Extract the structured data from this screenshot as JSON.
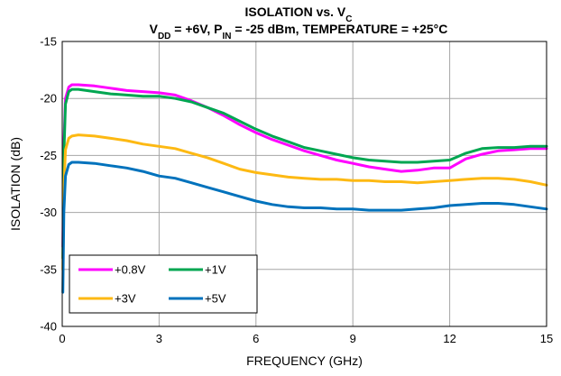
{
  "chart_data": {
    "type": "line",
    "title": "ISOLATION vs. V",
    "title_sub": "C",
    "subtitle_parts": [
      "V",
      "DD",
      " = +6V, P",
      "IN",
      " = -25 dBm, TEMPERATURE  = +25°C"
    ],
    "xlabel": "FREQUENCY (GHz)",
    "ylabel": "ISOLATION (dB)",
    "xlim": [
      0,
      15
    ],
    "ylim": [
      -40,
      -15
    ],
    "xticks": [
      0,
      3,
      6,
      9,
      12,
      15
    ],
    "yticks": [
      -40,
      -35,
      -30,
      -25,
      -20,
      -15
    ],
    "grid": true,
    "legend_position": "bottom-left",
    "series": [
      {
        "name": "+0.8V",
        "color": "#ff00ff",
        "x": [
          0.02,
          0.05,
          0.1,
          0.2,
          0.3,
          0.5,
          1,
          1.5,
          2,
          2.5,
          3,
          3.5,
          4,
          4.5,
          5,
          5.5,
          6,
          6.5,
          7,
          7.5,
          8,
          8.5,
          9,
          9.5,
          10,
          10.5,
          11,
          11.5,
          12,
          12.5,
          13,
          13.5,
          14,
          14.5,
          15
        ],
        "y": [
          -33,
          -24,
          -20,
          -19,
          -18.8,
          -18.8,
          -18.9,
          -19.1,
          -19.3,
          -19.4,
          -19.5,
          -19.7,
          -20.2,
          -20.8,
          -21.5,
          -22.3,
          -23.0,
          -23.6,
          -24.1,
          -24.6,
          -25.0,
          -25.4,
          -25.7,
          -26.0,
          -26.2,
          -26.4,
          -26.3,
          -26.1,
          -26.1,
          -25.3,
          -24.9,
          -24.6,
          -24.5,
          -24.4,
          -24.4
        ]
      },
      {
        "name": "+1V",
        "color": "#00a651",
        "x": [
          0.02,
          0.05,
          0.1,
          0.2,
          0.3,
          0.5,
          1,
          1.5,
          2,
          2.5,
          3,
          3.5,
          4,
          4.5,
          5,
          5.5,
          6,
          6.5,
          7,
          7.5,
          8,
          8.5,
          9,
          9.5,
          10,
          10.5,
          11,
          11.5,
          12,
          12.5,
          13,
          13.5,
          14,
          14.5,
          15
        ],
        "y": [
          -34,
          -25,
          -20.5,
          -19.4,
          -19.2,
          -19.2,
          -19.4,
          -19.6,
          -19.7,
          -19.8,
          -19.8,
          -20.0,
          -20.3,
          -20.8,
          -21.3,
          -22.0,
          -22.7,
          -23.3,
          -23.8,
          -24.3,
          -24.6,
          -24.9,
          -25.2,
          -25.4,
          -25.5,
          -25.6,
          -25.6,
          -25.5,
          -25.4,
          -24.8,
          -24.4,
          -24.3,
          -24.3,
          -24.2,
          -24.2
        ]
      },
      {
        "name": "+3V",
        "color": "#fdb913",
        "x": [
          0.02,
          0.05,
          0.1,
          0.2,
          0.3,
          0.5,
          1,
          1.5,
          2,
          2.5,
          3,
          3.5,
          4,
          4.5,
          5,
          5.5,
          6,
          6.5,
          7,
          7.5,
          8,
          8.5,
          9,
          9.5,
          10,
          10.5,
          11,
          11.5,
          12,
          12.5,
          13,
          13.5,
          14,
          14.5,
          15
        ],
        "y": [
          -35,
          -28,
          -24.5,
          -23.5,
          -23.3,
          -23.2,
          -23.3,
          -23.5,
          -23.7,
          -24.0,
          -24.2,
          -24.4,
          -24.8,
          -25.2,
          -25.7,
          -26.2,
          -26.5,
          -26.7,
          -26.9,
          -27.0,
          -27.1,
          -27.1,
          -27.2,
          -27.2,
          -27.3,
          -27.3,
          -27.4,
          -27.3,
          -27.2,
          -27.1,
          -27.0,
          -27.0,
          -27.1,
          -27.3,
          -27.6
        ]
      },
      {
        "name": "+5V",
        "color": "#0072bc",
        "x": [
          0.02,
          0.05,
          0.1,
          0.2,
          0.3,
          0.5,
          1,
          1.5,
          2,
          2.5,
          3,
          3.5,
          4,
          4.5,
          5,
          5.5,
          6,
          6.5,
          7,
          7.5,
          8,
          8.5,
          9,
          9.5,
          10,
          10.5,
          11,
          11.5,
          12,
          12.5,
          13,
          13.5,
          14,
          14.5,
          15
        ],
        "y": [
          -37,
          -30,
          -26.8,
          -25.8,
          -25.6,
          -25.6,
          -25.7,
          -25.9,
          -26.1,
          -26.4,
          -26.8,
          -27.0,
          -27.4,
          -27.8,
          -28.2,
          -28.6,
          -29.0,
          -29.3,
          -29.5,
          -29.6,
          -29.6,
          -29.7,
          -29.7,
          -29.8,
          -29.8,
          -29.8,
          -29.7,
          -29.6,
          -29.4,
          -29.3,
          -29.2,
          -29.2,
          -29.3,
          -29.5,
          -29.7
        ]
      }
    ]
  }
}
